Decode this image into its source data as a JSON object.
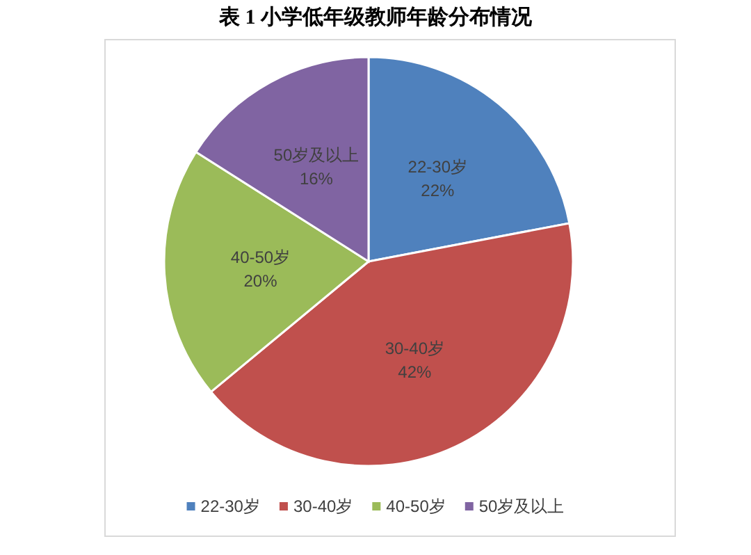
{
  "chart_data": {
    "type": "pie",
    "title": "表 1  小学低年级教师年龄分布情况",
    "categories": [
      "22-30岁",
      "30-40岁",
      "40-50岁",
      "50岁及以上"
    ],
    "values": [
      22,
      42,
      20,
      16
    ],
    "colors": [
      "#4f81bd",
      "#c0504d",
      "#9bbb59",
      "#8064a2"
    ],
    "value_labels": [
      "22%",
      "42%",
      "20%",
      "16%"
    ],
    "legend": "bottom"
  }
}
